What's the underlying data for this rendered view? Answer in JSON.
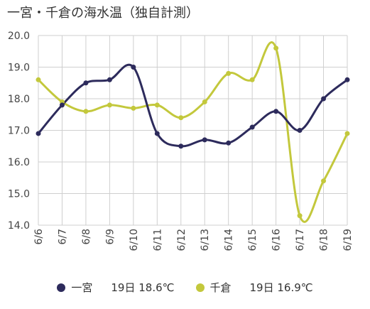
{
  "chart_data": {
    "type": "line",
    "title": "一宮・千倉の海水温（独自計測）",
    "xlabel": "",
    "ylabel": "",
    "categories": [
      "6/6",
      "6/7",
      "6/8",
      "6/9",
      "6/10",
      "6/11",
      "6/12",
      "6/13",
      "6/14",
      "6/15",
      "6/16",
      "6/17",
      "6/18",
      "6/19"
    ],
    "ylim": [
      14.0,
      20.0
    ],
    "yticks": [
      "14.0",
      "15.0",
      "16.0",
      "17.0",
      "18.0",
      "19.0",
      "20.0"
    ],
    "grid": true,
    "legend_position": "bottom",
    "series": [
      {
        "name": "一宮",
        "color": "#2d2b5c",
        "values": [
          16.9,
          17.8,
          18.5,
          18.6,
          19.0,
          16.9,
          16.5,
          16.7,
          16.6,
          17.1,
          17.6,
          17.0,
          18.0,
          18.6
        ],
        "legend_label": "一宮",
        "legend_latest": "19日 18.6℃"
      },
      {
        "name": "千倉",
        "color": "#c3c83c",
        "values": [
          18.6,
          17.9,
          17.6,
          17.8,
          17.7,
          17.8,
          17.4,
          17.9,
          18.8,
          18.6,
          19.6,
          14.3,
          15.4,
          16.9
        ],
        "legend_label": "千倉",
        "legend_latest": "19日 16.9℃"
      }
    ]
  }
}
